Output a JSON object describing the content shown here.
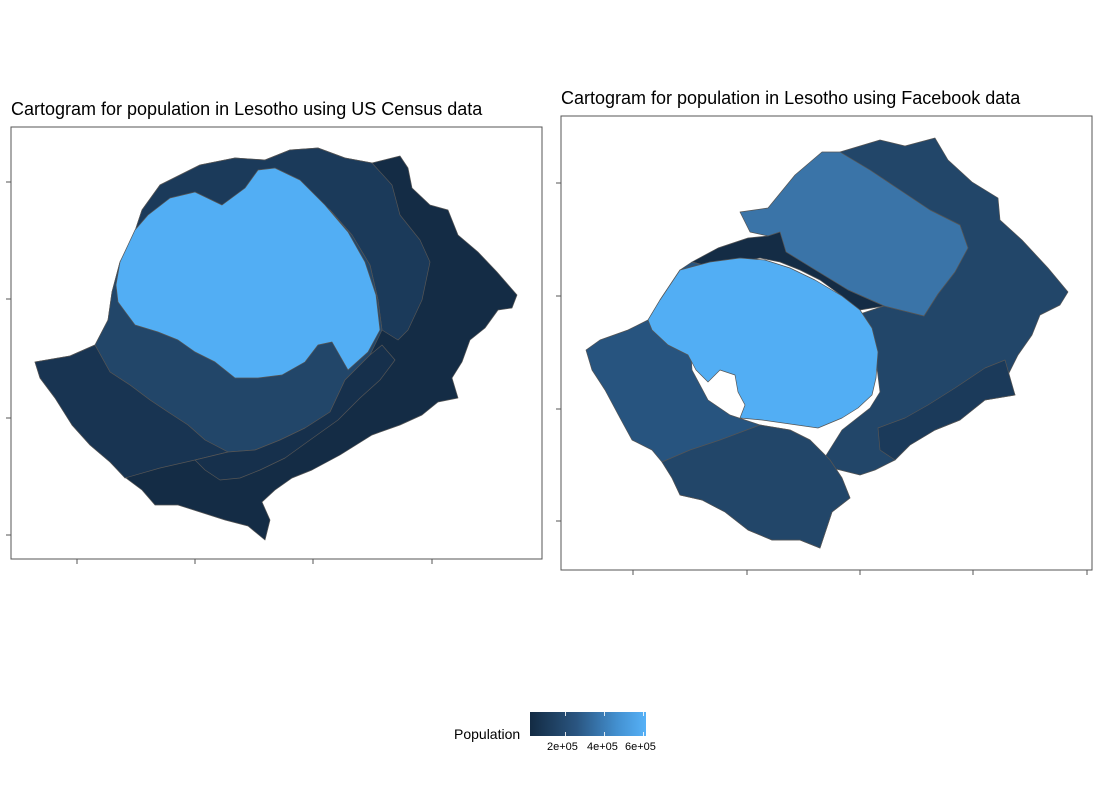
{
  "maps": [
    {
      "title": "Cartogram for population in Lesotho using US Census data"
    },
    {
      "title": "Cartogram for population in Lesotho using Facebook data"
    }
  ],
  "legend": {
    "title": "Population",
    "labels": [
      "2e+05",
      "4e+05",
      "6e+05"
    ],
    "low_color": "#132b43",
    "high_color": "#56b1f7"
  },
  "colors": {
    "region_darkest": "#142c45",
    "region_dark": "#1b3a5a",
    "region_mid": "#224669",
    "region_medium": "#27547f",
    "region_steel": "#3a74a8",
    "region_lightest": "#52aef4",
    "border": "#555555"
  }
}
